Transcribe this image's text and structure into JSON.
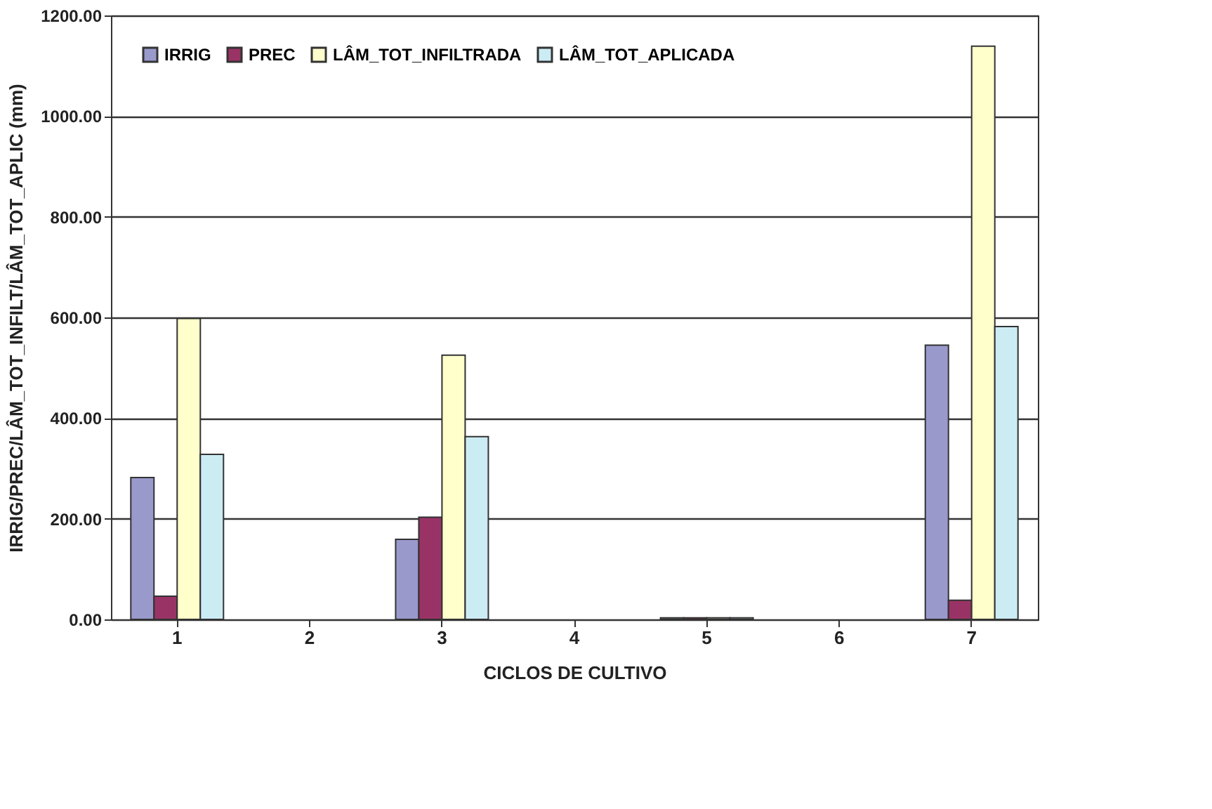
{
  "chart_data": {
    "type": "bar",
    "xlabel": "CICLOS DE CULTIVO",
    "ylabel": "IRRIG/PREC/LÂM_TOT_INFILT/LÂM_TOT_APLIC (mm)",
    "categories": [
      "1",
      "2",
      "3",
      "4",
      "5",
      "6",
      "7"
    ],
    "series": [
      {
        "name": "IRRIG",
        "color": "#9999cc",
        "values": [
          282,
          null,
          159,
          null,
          3,
          null,
          545
        ]
      },
      {
        "name": "PREC",
        "color": "#993366",
        "values": [
          46,
          null,
          203,
          null,
          3,
          null,
          38
        ]
      },
      {
        "name": "LÂM_TOT_INFILTRADA",
        "color": "#ffffcc",
        "values": [
          598,
          null,
          525,
          null,
          3,
          null,
          1139
        ]
      },
      {
        "name": "LÂM_TOT_APLICADA",
        "color": "#ccecf4",
        "values": [
          328,
          null,
          363,
          null,
          3,
          null,
          582
        ]
      }
    ],
    "ylim": [
      0,
      1200
    ],
    "yticks": [
      {
        "value": 0,
        "label": "0.00"
      },
      {
        "value": 200,
        "label": "200.00"
      },
      {
        "value": 400,
        "label": "400.00"
      },
      {
        "value": 600,
        "label": "600.00"
      },
      {
        "value": 800,
        "label": "800.00"
      },
      {
        "value": 1000,
        "label": "1000.00"
      },
      {
        "value": 1200,
        "label": "1200.00"
      }
    ],
    "grid": "y",
    "legend": "top left"
  }
}
